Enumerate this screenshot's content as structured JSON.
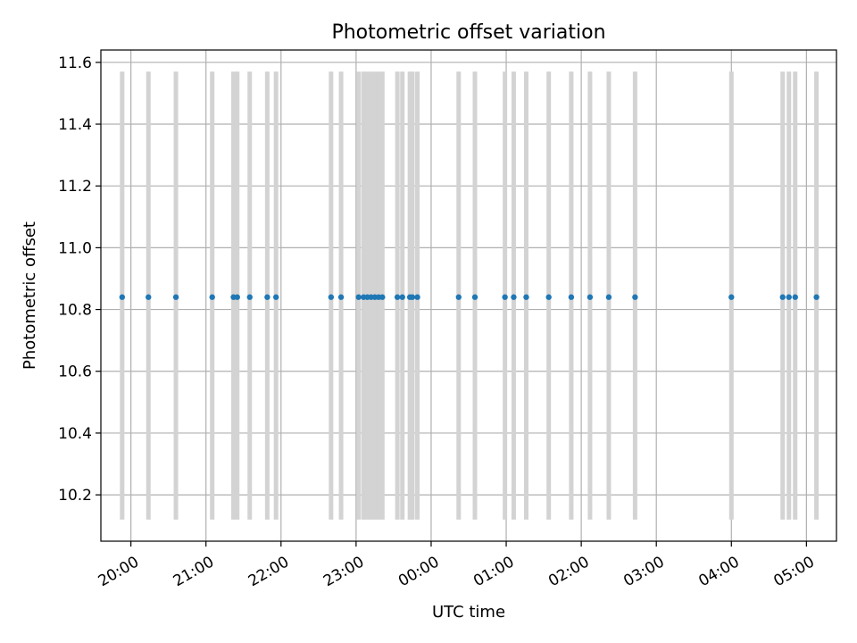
{
  "chart_data": {
    "type": "scatter",
    "title": "Photometric offset variation",
    "xlabel": "UTC time",
    "ylabel": "Photometric offset",
    "grid": true,
    "x_axis": {
      "kind": "time",
      "range": [
        "19:36",
        "05:24"
      ],
      "ticks": [
        "20:00",
        "21:00",
        "22:00",
        "23:00",
        "00:00",
        "01:00",
        "02:00",
        "03:00",
        "04:00",
        "05:00"
      ]
    },
    "y_axis": {
      "range": [
        10.05,
        11.64
      ],
      "ticks": [
        "10.2",
        "10.4",
        "10.6",
        "10.8",
        "11.0",
        "11.2",
        "11.4",
        "11.6"
      ]
    },
    "band_range": [
      10.12,
      11.57
    ],
    "band_color": "#d3d3d3",
    "marker_color": "#1f77b4",
    "series": [
      {
        "x": [
          "19:53",
          "20:14",
          "20:36",
          "21:05",
          "21:22",
          "21:25",
          "21:35",
          "21:49",
          "21:56",
          "22:40",
          "22:48",
          "23:02",
          "23:06",
          "23:09",
          "23:12",
          "23:15",
          "23:18",
          "23:21",
          "23:33",
          "23:37",
          "23:43",
          "23:45",
          "23:49",
          "00:22",
          "00:35",
          "00:59",
          "01:06",
          "01:16",
          "01:34",
          "01:52",
          "02:07",
          "02:22",
          "02:43",
          "04:00",
          "04:41",
          "04:46",
          "04:51",
          "05:08"
        ],
        "y": [
          10.84,
          10.84,
          10.84,
          10.84,
          10.84,
          10.84,
          10.84,
          10.84,
          10.84,
          10.84,
          10.84,
          10.84,
          10.84,
          10.84,
          10.84,
          10.84,
          10.84,
          10.84,
          10.84,
          10.84,
          10.84,
          10.84,
          10.84,
          10.84,
          10.84,
          10.84,
          10.84,
          10.84,
          10.84,
          10.84,
          10.84,
          10.84,
          10.84,
          10.84,
          10.84,
          10.84,
          10.84,
          10.84
        ]
      }
    ]
  }
}
